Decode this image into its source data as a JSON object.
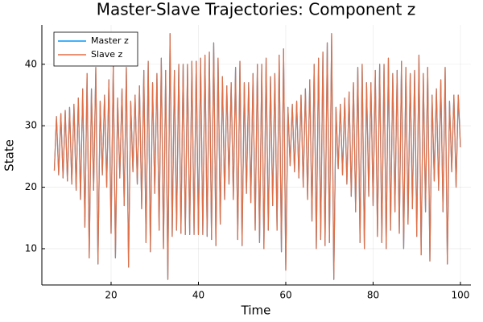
{
  "chart_data": {
    "type": "line",
    "title": "Master-Slave Trajectories: Component z",
    "x_label": "Time",
    "y_label": "State",
    "x": [
      7,
      7.5,
      8,
      8.5,
      9,
      9.5,
      10,
      10.5,
      11,
      11.5,
      12,
      12.5,
      13,
      13.5,
      14,
      14.5,
      15,
      15.5,
      16,
      16.5,
      17,
      17.5,
      18,
      18.5,
      19,
      19.5,
      20,
      20.5,
      21,
      21.5,
      22,
      22.5,
      23,
      23.5,
      24,
      24.5,
      25,
      25.5,
      26,
      26.5,
      27,
      27.5,
      28,
      28.5,
      29,
      29.5,
      30,
      30.5,
      31,
      31.5,
      32,
      32.5,
      33,
      33.5,
      34,
      34.5,
      35,
      35.5,
      36,
      36.5,
      37,
      37.5,
      38,
      38.5,
      39,
      39.5,
      40,
      40.5,
      41,
      41.5,
      42,
      42.5,
      43,
      43.5,
      44,
      44.5,
      45,
      45.5,
      46,
      46.5,
      47,
      47.5,
      48,
      48.5,
      49,
      49.5,
      50,
      50.5,
      51,
      51.5,
      52,
      52.5,
      53,
      53.5,
      54,
      54.5,
      55,
      55.5,
      56,
      56.5,
      57,
      57.5,
      58,
      58.5,
      59,
      59.5,
      60,
      60.5,
      61,
      61.5,
      62,
      62.5,
      63,
      63.5,
      64,
      64.5,
      65,
      65.5,
      66,
      66.5,
      67,
      67.5,
      68,
      68.5,
      69,
      69.5,
      70,
      70.5,
      71,
      71.5,
      72,
      72.5,
      73,
      73.5,
      74,
      74.5,
      75,
      75.5,
      76,
      76.5,
      77,
      77.5,
      78,
      78.5,
      79,
      79.5,
      80,
      80.5,
      81,
      81.5,
      82,
      82.5,
      83,
      83.5,
      84,
      84.5,
      85,
      85.5,
      86,
      86.5,
      87,
      87.5,
      88,
      88.5,
      89,
      89.5,
      90,
      90.5,
      91,
      91.5,
      92,
      92.5,
      93,
      93.5,
      94,
      94.5,
      95,
      95.5,
      96,
      96.5,
      97,
      97.5,
      98,
      98.5,
      99,
      99.5,
      100
    ],
    "series": [
      {
        "name": "Master z",
        "color": "#009af9",
        "values": [
          22.7,
          31.5,
          22,
          32,
          21.5,
          32.5,
          21,
          33,
          20.5,
          33.5,
          19.5,
          34.5,
          18,
          36,
          13.5,
          38.5,
          8.5,
          36,
          19.5,
          39.5,
          7.5,
          34,
          22,
          35,
          20,
          37.5,
          12.5,
          40,
          8.5,
          34.5,
          21.5,
          36,
          17,
          39.5,
          7,
          34,
          22.5,
          35,
          20.5,
          36.5,
          16.5,
          39,
          11,
          40.5,
          9.5,
          37,
          19,
          38.5,
          13,
          41,
          10,
          39,
          5,
          45,
          12,
          39,
          13,
          40,
          12.5,
          40,
          12.3,
          40,
          12.3,
          40.5,
          12.3,
          40.5,
          12.3,
          41,
          12.3,
          41.5,
          12,
          42,
          11.5,
          43.5,
          10.5,
          41,
          14,
          38,
          18,
          36.5,
          20.5,
          37,
          18,
          39.5,
          11.5,
          40.5,
          10.5,
          37,
          19,
          37,
          17.5,
          38.5,
          13,
          40,
          11,
          40,
          10,
          41,
          13,
          38,
          17,
          38.5,
          13,
          41.5,
          9.5,
          42.5,
          6.5,
          33,
          23.5,
          33.5,
          22.5,
          34,
          21.5,
          35,
          20,
          36,
          18,
          37.5,
          14.5,
          40,
          10,
          41,
          11.5,
          42,
          10.5,
          43.5,
          11,
          45,
          5,
          33,
          23,
          33.5,
          22,
          34.5,
          20.5,
          35.5,
          18.5,
          37,
          16,
          39.5,
          11,
          40,
          10,
          37,
          18.5,
          37,
          17,
          39,
          12,
          40,
          11,
          40,
          10,
          41,
          13,
          38.5,
          16,
          39,
          12.5,
          40.5,
          10,
          39.5,
          14,
          38.5,
          16.5,
          39,
          12,
          41.5,
          9,
          38.5,
          16,
          39.5,
          8,
          35,
          21,
          36,
          19.5,
          37.5,
          16,
          39.5,
          7.5,
          34,
          22.5,
          35,
          20,
          35,
          26.5
        ]
      },
      {
        "name": "Slave z",
        "color": "#e26f46",
        "values": [
          22.7,
          31.5,
          22,
          32,
          21.5,
          32.5,
          21,
          33,
          20.5,
          33.5,
          19.5,
          34.5,
          18,
          36,
          13.5,
          38.5,
          8.5,
          36,
          19.5,
          39.5,
          7.5,
          34,
          22,
          35,
          20,
          37.5,
          12.5,
          40,
          8.5,
          34.5,
          21.5,
          36,
          17,
          39.5,
          7,
          34,
          22.5,
          35,
          20.5,
          36.5,
          16.5,
          39,
          11,
          40.5,
          9.5,
          37,
          19,
          38.5,
          13,
          41,
          10,
          39,
          5,
          45,
          12,
          39,
          13,
          40,
          12.5,
          40,
          12.3,
          40,
          12.3,
          40.5,
          12.3,
          40.5,
          12.3,
          41,
          12.3,
          41.5,
          12,
          42,
          11.5,
          43.5,
          10.5,
          41,
          14,
          38,
          18,
          36.5,
          20.5,
          37,
          18,
          39.5,
          11.5,
          40.5,
          10.5,
          37,
          19,
          37,
          17.5,
          38.5,
          13,
          40,
          11,
          40,
          10,
          41,
          13,
          38,
          17,
          38.5,
          13,
          41.5,
          9.5,
          42.5,
          6.5,
          33,
          23.5,
          33.5,
          22.5,
          34,
          21.5,
          35,
          20,
          36,
          18,
          37.5,
          14.5,
          40,
          10,
          41,
          11.5,
          42,
          10.5,
          43.5,
          11,
          45,
          5,
          33,
          23,
          33.5,
          22,
          34.5,
          20.5,
          35.5,
          18.5,
          37,
          16,
          39.5,
          11,
          40,
          10,
          37,
          18.5,
          37,
          17,
          39,
          12,
          40,
          11,
          40,
          10,
          41,
          13,
          38.5,
          16,
          39,
          12.5,
          40.5,
          10,
          39.5,
          14,
          38.5,
          16.5,
          39,
          12,
          41.5,
          9,
          38.5,
          16,
          39.5,
          8,
          35,
          21,
          36,
          19.5,
          37.5,
          16,
          39.5,
          7.5,
          34,
          22.5,
          35,
          20,
          35,
          26.5
        ]
      }
    ],
    "xlim": [
      4.15,
      102.4
    ],
    "ylim": [
      4.1,
      46.4
    ],
    "xticks": [
      20,
      40,
      60,
      80,
      100
    ],
    "yticks": [
      10,
      20,
      30,
      40
    ],
    "grid": true,
    "legend": "top-left"
  }
}
